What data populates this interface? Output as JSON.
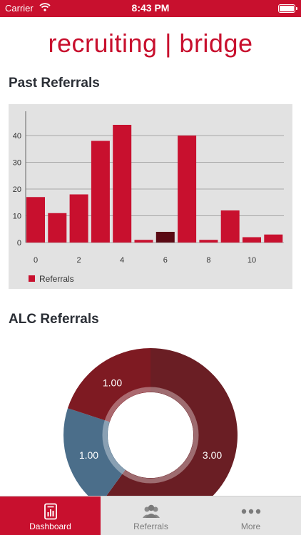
{
  "status_bar": {
    "carrier": "Carrier",
    "time": "8:43 PM"
  },
  "app": {
    "logo_text": "recruiting | bridge",
    "brand_color": "#c8102e"
  },
  "past_referrals": {
    "title": "Past Referrals"
  },
  "alc_referrals": {
    "title": "ALC Referrals"
  },
  "chart_data": [
    {
      "type": "bar",
      "title": "Past Referrals",
      "x": [
        0,
        1,
        2,
        3,
        4,
        5,
        6,
        7,
        8,
        9,
        10,
        11
      ],
      "values": [
        17,
        11,
        18,
        38,
        44,
        1,
        4,
        40,
        1,
        12,
        2,
        3
      ],
      "highlight_index": 6,
      "x_ticks": [
        "0",
        "2",
        "4",
        "6",
        "8",
        "10"
      ],
      "y_ticks": [
        "0",
        "10",
        "20",
        "30",
        "40"
      ],
      "ylim": [
        0,
        48
      ],
      "legend": [
        "Referrals"
      ],
      "legend_position": "bottom-left",
      "colors": {
        "bar": "#c8102e",
        "highlight": "#5a0a14",
        "background": "#e2e2e2"
      },
      "grid": true
    },
    {
      "type": "pie",
      "title": "ALC Referrals",
      "values": [
        1.0,
        3.0,
        1.0
      ],
      "labels": [
        "1.00",
        "3.00",
        "1.00"
      ],
      "colors": [
        "#7e1a22",
        "#6a1e24",
        "#4b6e8a"
      ]
    }
  ],
  "tabs": [
    {
      "label": "Dashboard",
      "icon": "dashboard-icon",
      "active": true
    },
    {
      "label": "Referrals",
      "icon": "people-icon",
      "active": false
    },
    {
      "label": "More",
      "icon": "more-icon",
      "active": false
    }
  ]
}
